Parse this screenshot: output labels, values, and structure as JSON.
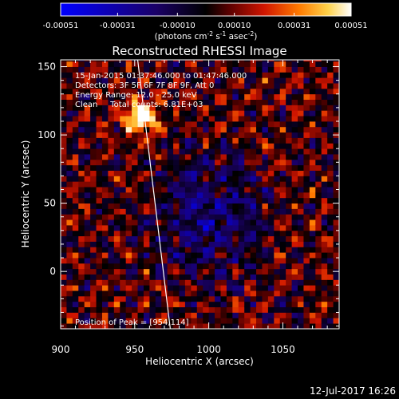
{
  "chart_data": {
    "type": "heatmap",
    "title": "Reconstructed RHESSI Image",
    "xlabel": "Heliocentric X (arcsec)",
    "ylabel": "Heliocentric Y (arcsec)",
    "xlim": [
      900,
      1088
    ],
    "ylim": [
      -42,
      155
    ],
    "x_ticks": [
      900,
      950,
      1000,
      1050
    ],
    "y_ticks": [
      0,
      50,
      100,
      150
    ],
    "colorbar": {
      "min": -0.00051,
      "max": 0.00051,
      "ticks": [
        "-0.00051",
        "-0.00031",
        "-0.00010",
        "0.00010",
        "0.00031",
        "0.00051"
      ],
      "tick_values": [
        -0.00051,
        -0.00031,
        -0.0001,
        0.0001,
        0.00031,
        0.00051
      ],
      "label_main": "(photons cm",
      "label_sup1": "-2",
      "label_s": " s",
      "label_sup2": "-1",
      "label_asec": " asec",
      "label_sup3": "-2",
      "label_close": ")"
    },
    "annotations": {
      "time_range": "15-Jan-2015 01:37:46.000 to 01:47:46.000",
      "detectors": "Detectors: 3F 5F 6F 7F 8F 9F, Att 0",
      "energy": "Energy Range: 12.0 - 25.0 keV",
      "clean": "Clean     Total counts: 6.81E+03",
      "peak": "Position of Peak = [954,114]"
    },
    "peak_position": [
      954,
      114
    ],
    "limb_line": [
      [
        952,
        155
      ],
      [
        974,
        -42
      ]
    ],
    "pixel_size_arcsec": 4,
    "grid": false
  },
  "footer": {
    "date": "12-Jul-2017 16:26"
  }
}
